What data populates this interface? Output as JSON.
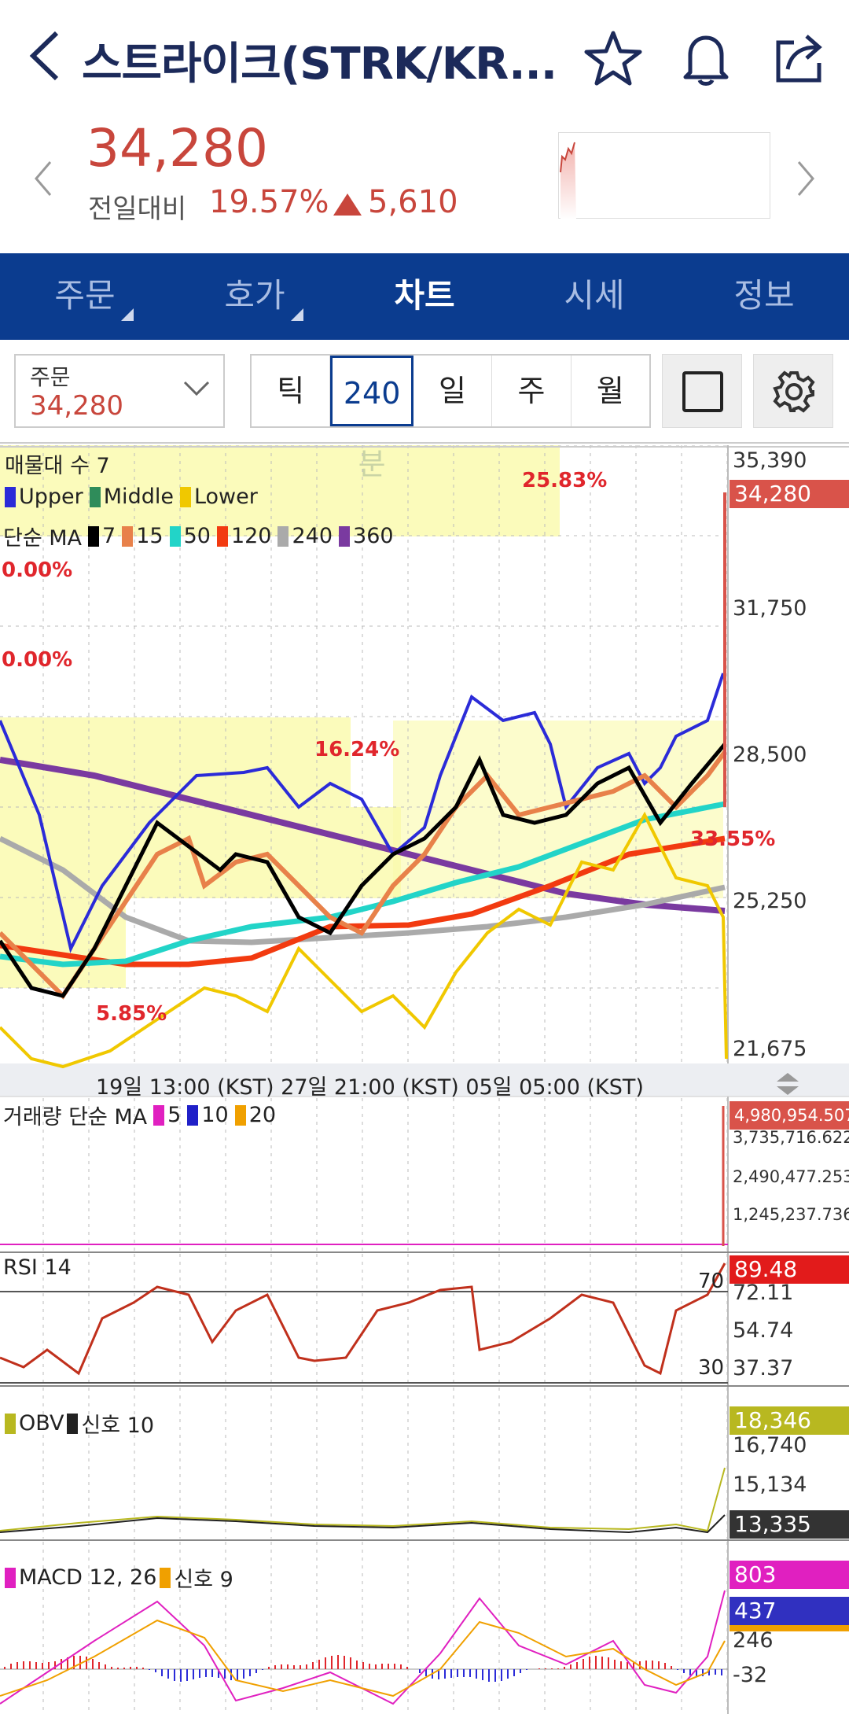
{
  "header": {
    "title": "스트라이크(STRK/KR...",
    "icons": [
      "back-icon",
      "star-icon",
      "bell-icon",
      "share-icon"
    ]
  },
  "price": {
    "current": "34,280",
    "change_label": "전일대비",
    "change_pct": "19.57%",
    "change_value": "5,610",
    "color_up": "#c8463c"
  },
  "tabs": [
    {
      "label": "주문",
      "active": false
    },
    {
      "label": "호가",
      "active": false
    },
    {
      "label": "차트",
      "active": true
    },
    {
      "label": "시세",
      "active": false
    },
    {
      "label": "정보",
      "active": false
    }
  ],
  "toolbar": {
    "order_label": "주문",
    "order_value": "34,280",
    "periods": [
      "틱",
      "240분",
      "일",
      "주",
      "월"
    ],
    "active_period": "240분"
  },
  "main_chart": {
    "legend_volume_profile": "매물대 수 7",
    "bollinger": {
      "upper": "Upper",
      "middle": "Middle",
      "lower": "Lower"
    },
    "ma_label": "단순 MA",
    "ma_periods": [
      "7",
      "15",
      "50",
      "120",
      "240",
      "360"
    ],
    "ma_colors": [
      "#000000",
      "#e8814a",
      "#22d4c8",
      "#f23a10",
      "#aaaaaa",
      "#7a3aa0"
    ],
    "profile_pcts": [
      "25.83%",
      "0.00%",
      "0.00%",
      "16.24%",
      "33.55%",
      "5.85%"
    ],
    "y_ticks": [
      "35,390",
      "31,750",
      "28,500",
      "25,250",
      "21,675"
    ],
    "current_price_box": "34,280",
    "x_axis": "19일 13:00 (KST) 27일 21:00 (KST) 05일 05:00 (KST)"
  },
  "volume": {
    "legend": "거래량 단순 MA",
    "ma_periods": [
      "5",
      "10",
      "20"
    ],
    "y_ticks": [
      "3,735,716.622",
      "2,490,477.253",
      "1,245,237.736"
    ],
    "current_box": "4,980,954.507"
  },
  "rsi": {
    "legend": "RSI 14",
    "levels": [
      "70",
      "30"
    ],
    "y_ticks": [
      "72.11",
      "54.74",
      "37.37"
    ],
    "current_box": "89.48"
  },
  "obv": {
    "legend_obv": "OBV",
    "legend_signal": "신호 10",
    "y_ticks": [
      "16,740",
      "15,134"
    ],
    "current_box": "18,346",
    "signal_box": "13,335"
  },
  "macd": {
    "legend": "MACD 12, 26",
    "signal": "신호 9",
    "y_ticks": [
      "246",
      "-32"
    ],
    "macd_box": "803",
    "signal_box": "437"
  }
}
